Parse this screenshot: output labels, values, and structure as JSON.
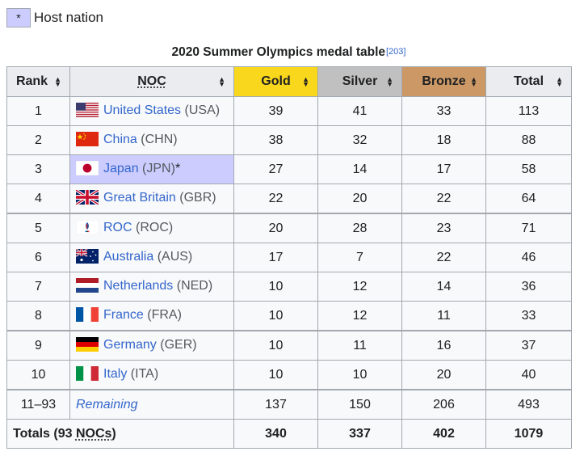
{
  "legend": {
    "symbol": "*",
    "label": "Host nation",
    "color": "#ccccff"
  },
  "table": {
    "caption": "2020 Summer Olympics medal table",
    "reference": "[203]",
    "headers": {
      "rank": "Rank",
      "noc": "NOC",
      "gold": "Gold",
      "silver": "Silver",
      "bronze": "Bronze",
      "total": "Total"
    },
    "header_colors": {
      "gold": "#f9d71c",
      "silver": "#c0c0c0",
      "bronze": "#cc9966"
    },
    "rows": [
      {
        "rank": "1",
        "country": "United States",
        "code": "(USA)",
        "flag": "usa-flag-icon",
        "gold": "39",
        "silver": "41",
        "bronze": "33",
        "total": "113"
      },
      {
        "rank": "2",
        "country": "China",
        "code": "(CHN)",
        "flag": "china-flag-icon",
        "gold": "38",
        "silver": "32",
        "bronze": "18",
        "total": "88"
      },
      {
        "rank": "3",
        "country": "Japan",
        "code": "(JPN)",
        "host": "*",
        "flag": "japan-flag-icon",
        "gold": "27",
        "silver": "14",
        "bronze": "17",
        "total": "58"
      },
      {
        "rank": "4",
        "country": "Great Britain",
        "code": "(GBR)",
        "flag": "gbr-flag-icon",
        "gold": "22",
        "silver": "20",
        "bronze": "22",
        "total": "64"
      },
      {
        "rank": "5",
        "country": "ROC",
        "code": "(ROC)",
        "flag": "roc-flag-icon",
        "gold": "20",
        "silver": "28",
        "bronze": "23",
        "total": "71"
      },
      {
        "rank": "6",
        "country": "Australia",
        "code": "(AUS)",
        "flag": "australia-flag-icon",
        "gold": "17",
        "silver": "7",
        "bronze": "22",
        "total": "46"
      },
      {
        "rank": "7",
        "country": "Netherlands",
        "code": "(NED)",
        "flag": "netherlands-flag-icon",
        "gold": "10",
        "silver": "12",
        "bronze": "14",
        "total": "36"
      },
      {
        "rank": "8",
        "country": "France",
        "code": "(FRA)",
        "flag": "france-flag-icon",
        "gold": "10",
        "silver": "12",
        "bronze": "11",
        "total": "33"
      },
      {
        "rank": "9",
        "country": "Germany",
        "code": "(GER)",
        "flag": "germany-flag-icon",
        "gold": "10",
        "silver": "11",
        "bronze": "16",
        "total": "37"
      },
      {
        "rank": "10",
        "country": "Italy",
        "code": "(ITA)",
        "flag": "italy-flag-icon",
        "gold": "10",
        "silver": "10",
        "bronze": "20",
        "total": "40"
      }
    ],
    "remaining": {
      "rank": "11–93",
      "label": "Remaining",
      "gold": "137",
      "silver": "150",
      "bronze": "206",
      "total": "493"
    },
    "totals": {
      "label_prefix": "Totals (93 ",
      "label_abbr": "NOCs",
      "label_suffix": ")",
      "gold": "340",
      "silver": "337",
      "bronze": "402",
      "total": "1079"
    }
  }
}
